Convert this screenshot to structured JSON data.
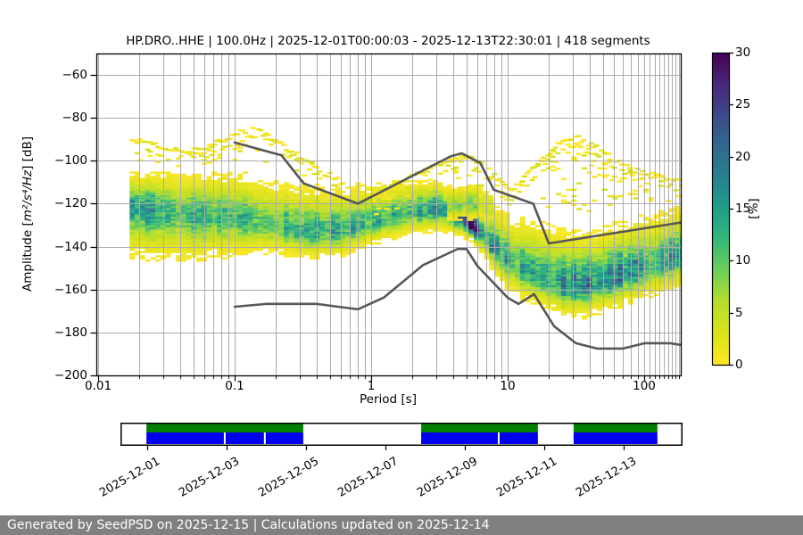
{
  "header": {
    "title": "HP.DRO..HHE | 100.0Hz | 2025-12-01T00:00:03 - 2025-12-13T22:30:01 | 418 segments"
  },
  "axes": {
    "xlabel": "Period [s]",
    "ylabel_pre": "Amplitude [",
    "ylabel_math": "m²/s⁴/Hz",
    "ylabel_post": "] [dB]",
    "x_ticks": [
      {
        "label": "0.01",
        "value": 0.01
      },
      {
        "label": "0.1",
        "value": 0.1
      },
      {
        "label": "1",
        "value": 1
      },
      {
        "label": "10",
        "value": 10
      },
      {
        "label": "100",
        "value": 100
      }
    ],
    "y_ticks": [
      {
        "label": "−60",
        "value": -60
      },
      {
        "label": "−80",
        "value": -80
      },
      {
        "label": "−100",
        "value": -100
      },
      {
        "label": "−120",
        "value": -120
      },
      {
        "label": "−140",
        "value": -140
      },
      {
        "label": "−160",
        "value": -160
      },
      {
        "label": "−180",
        "value": -180
      },
      {
        "label": "−200",
        "value": -200
      }
    ],
    "x_range": [
      0.0097,
      185
    ],
    "y_range": [
      -200,
      -50
    ]
  },
  "colorbar": {
    "label": "[%]",
    "min": 0,
    "max": 30,
    "ticks": [
      {
        "label": "0",
        "value": 0
      },
      {
        "label": "5",
        "value": 5
      },
      {
        "label": "10",
        "value": 10
      },
      {
        "label": "15",
        "value": 15
      },
      {
        "label": "20",
        "value": 20
      },
      {
        "label": "25",
        "value": 25
      },
      {
        "label": "30",
        "value": 30
      }
    ],
    "stops": [
      "#fde725",
      "#d8e219",
      "#b5de2b",
      "#6ece58",
      "#35b779",
      "#1f9e89",
      "#26828e",
      "#31688e",
      "#3e4989",
      "#482878",
      "#440154"
    ]
  },
  "availability": {
    "date_ticks": [
      {
        "label": "2025-12-01",
        "day": 0
      },
      {
        "label": "2025-12-03",
        "day": 2
      },
      {
        "label": "2025-12-05",
        "day": 4
      },
      {
        "label": "2025-12-07",
        "day": 6
      },
      {
        "label": "2025-12-09",
        "day": 8
      },
      {
        "label": "2025-12-11",
        "day": 10
      },
      {
        "label": "2025-12-13",
        "day": 12
      }
    ],
    "bar_day_range": [
      -0.67,
      13.48
    ],
    "segments": [
      {
        "start_day": -0.02,
        "end_day": 3.93,
        "blue_gap_days": [
          1.93,
          2.94
        ]
      },
      {
        "start_day": 6.9,
        "end_day": 9.84,
        "blue_gap_days": [
          8.83
        ]
      },
      {
        "start_day": 10.74,
        "end_day": 12.85,
        "blue_gap_days": []
      }
    ],
    "colors": {
      "data_coverage": "#008000",
      "psd_coverage": "#0000ee"
    }
  },
  "footer": {
    "text": "Generated by SeedPSD on 2025-12-15 | Calculations updated on 2025-12-14",
    "bg": "#808080"
  },
  "colors": {
    "grid": "#ababab",
    "noise_model": "#575757",
    "axis": "#000000",
    "background": "#ffffff"
  },
  "chart_data": {
    "type": "heatmap",
    "subtype": "ppsd-probability-density",
    "station": "HP.DRO..HHE",
    "sampling_rate": "100.0Hz",
    "time_start": "2025-12-01T00:00:03",
    "time_end": "2025-12-13T22:30:01",
    "segments": 418,
    "xlabel": "Period [s]",
    "ylabel": "Amplitude [m^2/s^4/Hz] [dB]",
    "xscale": "log",
    "xlim": [
      0.0097,
      185
    ],
    "ylim": [
      -200,
      -50
    ],
    "grid": true,
    "colormap": "viridis_r",
    "colorbar_label": "[%]",
    "colorbar_range": [
      0,
      30
    ],
    "ppsd_bands": [
      {
        "name": "main-distribution",
        "station_format": [
          "period_s",
          "mode_db",
          "peak_percent",
          "spread_up_db",
          "spread_down_db"
        ],
        "stations": [
          [
            0.017,
            -121.5,
            17,
            6,
            9
          ],
          [
            0.025,
            -123,
            14,
            6.5,
            9
          ],
          [
            0.04,
            -125,
            12,
            7,
            8.5
          ],
          [
            0.07,
            -126,
            11,
            7.5,
            7.5
          ],
          [
            0.12,
            -128,
            11,
            8,
            6.5
          ],
          [
            0.2,
            -131,
            12,
            8,
            5
          ],
          [
            0.35,
            -134,
            13,
            8,
            4.5
          ],
          [
            0.6,
            -133,
            13,
            7.5,
            4.5
          ],
          [
            1,
            -129,
            13,
            7,
            4
          ],
          [
            1.8,
            -125,
            14,
            6,
            4
          ],
          [
            3,
            -122.5,
            15,
            5,
            4
          ],
          [
            4.2,
            -127,
            20,
            4,
            3
          ],
          [
            5.2,
            -130.5,
            30,
            3.5,
            2.5
          ],
          [
            6.5,
            -136,
            16,
            5,
            3.5
          ],
          [
            8,
            -143,
            13,
            8,
            4.5
          ],
          [
            10,
            -148,
            12,
            8.5,
            5
          ],
          [
            13,
            -151.5,
            13,
            9,
            5.5
          ],
          [
            18,
            -155,
            14,
            9.5,
            5.5
          ],
          [
            25,
            -158.5,
            15,
            9.5,
            5.5
          ],
          [
            35,
            -158.5,
            16,
            9.5,
            5.5
          ],
          [
            50,
            -156,
            16,
            9,
            5.5
          ],
          [
            70,
            -153,
            16,
            9,
            5.5
          ],
          [
            100,
            -150,
            15,
            9,
            5.5
          ],
          [
            140,
            -147,
            14,
            8.5,
            5.5
          ],
          [
            180,
            -144.5,
            13,
            8.5,
            5.5
          ]
        ]
      },
      {
        "name": "upper-branch-microseism",
        "station_format": [
          "period_s",
          "mode_db",
          "peak_percent",
          "spread_up_db",
          "spread_down_db"
        ],
        "stations": [
          [
            3.6,
            -121.5,
            7,
            4,
            3
          ],
          [
            5.2,
            -120.5,
            8,
            4,
            3
          ],
          [
            7.2,
            -123,
            4,
            4,
            3
          ]
        ]
      }
    ],
    "outlier_arcs": [
      [
        [
          0.017,
          -90
        ],
        [
          0.025,
          -92.5
        ],
        [
          0.04,
          -95
        ],
        [
          0.06,
          -93
        ],
        [
          0.1,
          -87
        ],
        [
          0.14,
          -83.5
        ],
        [
          0.2,
          -91
        ],
        [
          0.28,
          -97
        ],
        [
          0.4,
          -104
        ],
        [
          0.6,
          -109
        ]
      ],
      [
        [
          1,
          -116
        ],
        [
          1.8,
          -108
        ],
        [
          3,
          -101
        ],
        [
          4.5,
          -97.5
        ],
        [
          6,
          -100
        ],
        [
          8,
          -108
        ],
        [
          10,
          -114
        ]
      ],
      [
        [
          9,
          -118
        ],
        [
          13,
          -107
        ],
        [
          18,
          -97
        ],
        [
          25,
          -90
        ],
        [
          30,
          -88.5
        ],
        [
          40,
          -92
        ],
        [
          55,
          -98
        ],
        [
          75,
          -103
        ],
        [
          100,
          -106
        ],
        [
          130,
          -107
        ],
        [
          170,
          -109
        ],
        [
          185,
          -111
        ]
      ]
    ],
    "noise_models": {
      "high_noise_model": [
        [
          0.1,
          -91.5
        ],
        [
          0.22,
          -97.4
        ],
        [
          0.32,
          -110.5
        ],
        [
          0.8,
          -120
        ],
        [
          3.8,
          -98
        ],
        [
          4.6,
          -96.5
        ],
        [
          6.3,
          -101
        ],
        [
          7.9,
          -113.5
        ],
        [
          15.4,
          -120
        ],
        [
          20,
          -138.5
        ],
        [
          185,
          -128.8
        ]
      ],
      "low_noise_model": [
        [
          0.1,
          -168
        ],
        [
          0.17,
          -166.7
        ],
        [
          0.4,
          -166.7
        ],
        [
          0.8,
          -169.2
        ],
        [
          1.24,
          -163.7
        ],
        [
          2.4,
          -148.6
        ],
        [
          4.3,
          -141.1
        ],
        [
          5,
          -141.1
        ],
        [
          6,
          -149
        ],
        [
          10,
          -163.8
        ],
        [
          12,
          -166.7
        ],
        [
          15.6,
          -162.1
        ],
        [
          21.9,
          -177.1
        ],
        [
          31.6,
          -185
        ],
        [
          45,
          -187.5
        ],
        [
          70,
          -187.5
        ],
        [
          101,
          -185
        ],
        [
          154,
          -185
        ],
        [
          185,
          -185.8
        ]
      ]
    }
  }
}
